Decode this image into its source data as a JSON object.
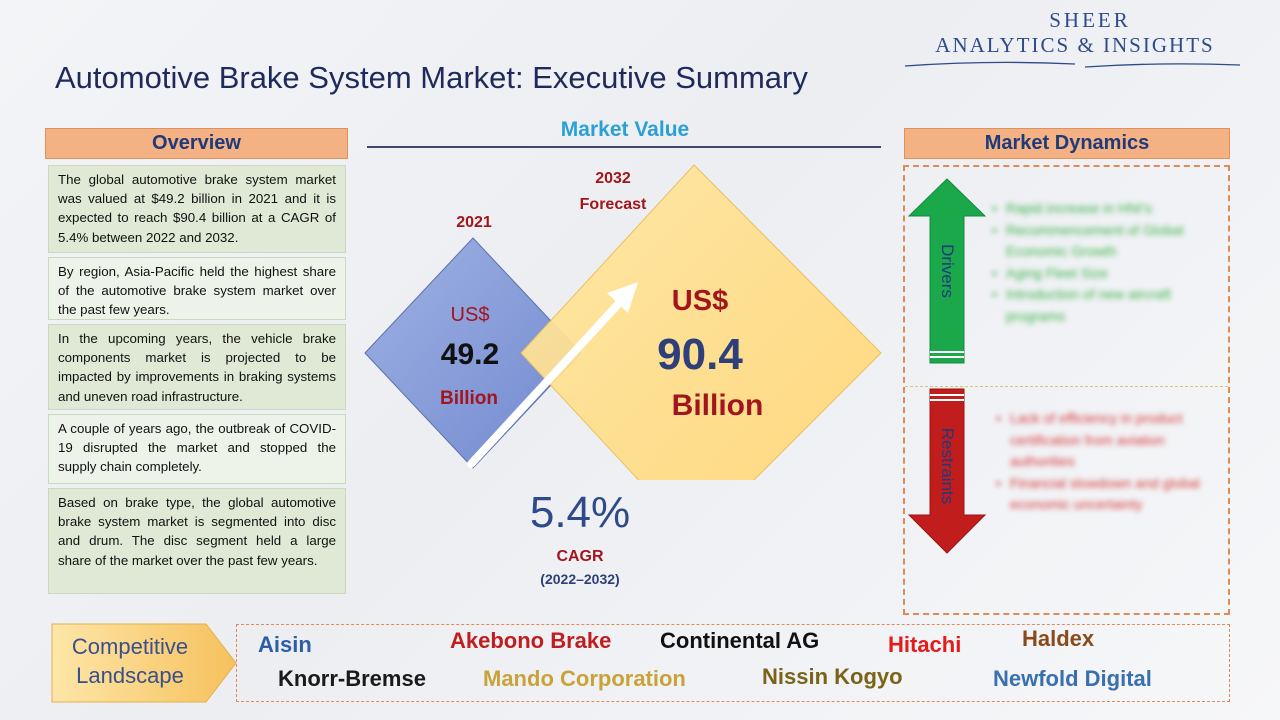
{
  "logo": {
    "line1": "SHEER",
    "line2": "ANALYTICS & INSIGHTS"
  },
  "title": "Automotive Brake System Market: Executive Summary",
  "overview": {
    "header": "Overview",
    "items": [
      "The global automotive brake system market was valued at $49.2 billion in 2021 and it is expected to reach $90.4 billion at a CAGR of 5.4% between 2022 and 2032.",
      "By region, Asia-Pacific held the highest share of the automotive brake system market over the past few years.",
      "In the upcoming years, the vehicle brake components market is projected to be impacted by improvements in braking systems and uneven road infrastructure.",
      "A couple of years ago, the outbreak of COVID-19 disrupted the market and stopped the supply chain completely.",
      "Based on brake type, the global automotive brake system market is segmented into disc and drum. The disc segment held a large share of the market over the past few years."
    ]
  },
  "market_value": {
    "header": "Market Value",
    "y2021": {
      "year": "2021",
      "currency": "US$",
      "value": "49.2",
      "unit": "Billion"
    },
    "y2032": {
      "year": "2032",
      "sub": "Forecast",
      "currency": "US$",
      "value": "90.4",
      "unit": "Billion"
    },
    "cagr": {
      "value": "5.4%",
      "label": "CAGR",
      "period": "(2022–2032)"
    }
  },
  "dynamics": {
    "header": "Market Dynamics",
    "drivers_label": "Drivers",
    "restraints_label": "Restraints",
    "drivers": [
      "Rapid increase in HNI's",
      "Recommencement of Global Economic Growth",
      "Aging Fleet Size",
      "Introduction of new aircraft programs"
    ],
    "restraints": [
      "Lack of efficiency in product certification from aviation authorities",
      "Financial slowdown and global economic uncertainty"
    ]
  },
  "competitive": {
    "label_line1": "Competitive",
    "label_line2": "Landscape",
    "companies": [
      {
        "name": "Aisin",
        "color": "#2e5da8"
      },
      {
        "name": "Akebono Brake",
        "color": "#c01e1e"
      },
      {
        "name": "Continental AG",
        "color": "#111111"
      },
      {
        "name": "Hitachi",
        "color": "#e51b1b"
      },
      {
        "name": "Haldex",
        "color": "#8a4b1c"
      },
      {
        "name": "Knorr-Bremse",
        "color": "#1a1a1a"
      },
      {
        "name": "Mando Corporation",
        "color": "#c9a23a"
      },
      {
        "name": "Nissin Kogyo",
        "color": "#7a6418"
      },
      {
        "name": "Newfold Digital",
        "color": "#3a6fb0"
      }
    ]
  }
}
